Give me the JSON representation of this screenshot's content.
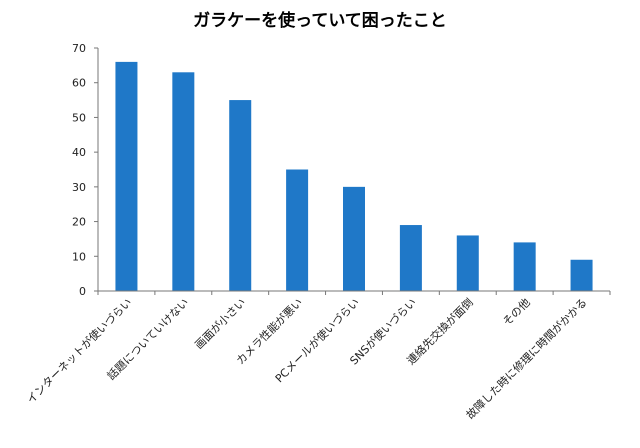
{
  "chart_data": {
    "type": "bar",
    "title": "ガラケーを使っていて困ったこと",
    "categories": [
      "インターネットが使いづらい",
      "話題についていけない",
      "画面が小さい",
      "カメラ性能が悪い",
      "PCメールが使いづらい",
      "SNSが使いづらい",
      "連絡先交換が面倒",
      "その他",
      "故障した時に修理に時間がかかる"
    ],
    "values": [
      66,
      63,
      55,
      35,
      30,
      19,
      16,
      14,
      9
    ],
    "ylim": [
      0,
      70
    ],
    "yticks": [
      "0",
      "10",
      "20",
      "30",
      "40",
      "50",
      "60",
      "70"
    ],
    "xlabel": "",
    "ylabel": "",
    "grid": false,
    "legend": "none",
    "bar_color": "#1f78c8"
  }
}
